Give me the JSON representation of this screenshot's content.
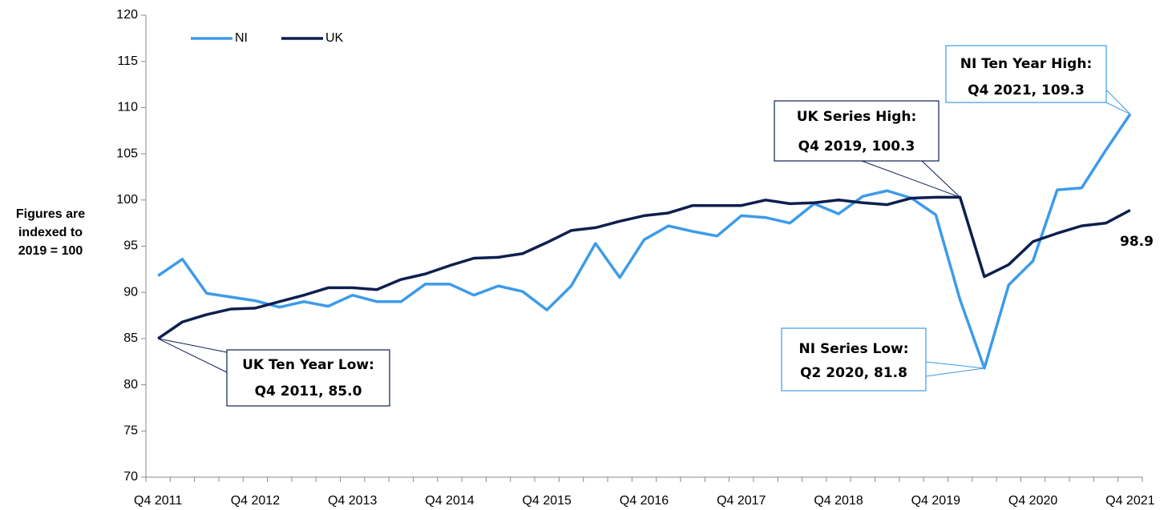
{
  "chart_data": {
    "type": "line",
    "y_label": [
      "Figures are",
      "indexed to",
      "2019 = 100"
    ],
    "categories": [
      "Q4 2011",
      null,
      null,
      null,
      "Q4 2012",
      null,
      null,
      null,
      "Q4 2013",
      null,
      null,
      null,
      "Q4 2014",
      null,
      null,
      null,
      "Q4 2015",
      null,
      null,
      null,
      "Q4 2016",
      null,
      null,
      null,
      "Q4 2017",
      null,
      null,
      null,
      "Q4 2018",
      null,
      null,
      null,
      "Q4 2019",
      null,
      null,
      null,
      "Q4 2020",
      null,
      null,
      null,
      "Q4 2021"
    ],
    "series": [
      {
        "name": "NI",
        "color": "#3d9be9",
        "values": [
          91.8,
          93.6,
          89.9,
          89.5,
          89.1,
          88.4,
          89.0,
          88.5,
          89.7,
          89.0,
          89.0,
          90.9,
          90.9,
          89.7,
          90.7,
          90.1,
          88.1,
          90.7,
          95.3,
          91.6,
          95.7,
          97.2,
          96.6,
          96.1,
          98.3,
          98.1,
          97.5,
          99.6,
          98.5,
          100.4,
          101.0,
          100.2,
          98.4,
          89.2,
          81.8,
          90.8,
          93.4,
          101.1,
          101.3,
          105.4,
          109.3
        ]
      },
      {
        "name": "UK",
        "color": "#0d1f4f",
        "values": [
          85.0,
          86.8,
          87.6,
          88.2,
          88.3,
          89.0,
          89.7,
          90.5,
          90.5,
          90.3,
          91.4,
          92.0,
          92.9,
          93.7,
          93.8,
          94.2,
          95.4,
          96.7,
          97.0,
          97.7,
          98.3,
          98.6,
          99.4,
          99.4,
          99.4,
          100.0,
          99.6,
          99.7,
          100.0,
          99.7,
          99.5,
          100.2,
          100.3,
          100.3,
          91.7,
          93.0,
          95.5,
          96.4,
          97.2,
          97.5,
          98.9
        ]
      }
    ],
    "ylim": [
      70,
      120
    ],
    "yticks": [
      70,
      75,
      80,
      85,
      90,
      95,
      100,
      105,
      110,
      115,
      120
    ],
    "legend": "top-left",
    "annotations": [
      {
        "lines": [
          "UK Ten Year Low:",
          "Q4 2011, 85.0"
        ],
        "color": "#0d1f4f"
      },
      {
        "lines": [
          "UK Series High:",
          "Q4 2019, 100.3"
        ],
        "color": "#0d1f4f"
      },
      {
        "lines": [
          "NI Series Low:",
          "Q2 2020, 81.8"
        ],
        "color": "#3d9be9"
      },
      {
        "lines": [
          "NI Ten Year High:",
          "Q4 2021, 109.3"
        ],
        "color": "#3d9be9"
      }
    ]
  }
}
